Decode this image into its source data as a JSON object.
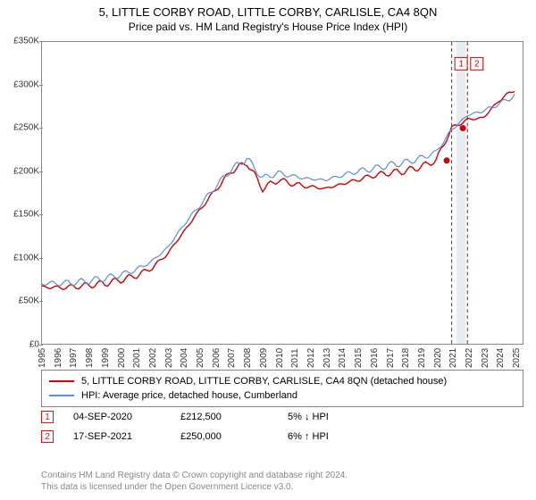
{
  "title": "5, LITTLE CORBY ROAD, LITTLE CORBY, CARLISLE, CA4 8QN",
  "subtitle": "Price paid vs. HM Land Registry's House Price Index (HPI)",
  "chart": {
    "type": "line",
    "background_color": "#ffffff",
    "border_color": "#888888",
    "x_years": [
      1995,
      1996,
      1997,
      1998,
      1999,
      2000,
      2001,
      2002,
      2003,
      2004,
      2005,
      2006,
      2007,
      2008,
      2009,
      2010,
      2011,
      2012,
      2013,
      2014,
      2015,
      2016,
      2017,
      2018,
      2019,
      2020,
      2021,
      2022,
      2023,
      2024,
      2025
    ],
    "xlim": [
      1995,
      2025.5
    ],
    "ylim": [
      0,
      350000
    ],
    "ytick_step": 50000,
    "ytick_labels": [
      "£0",
      "£50K",
      "£100K",
      "£150K",
      "£200K",
      "£250K",
      "£300K",
      "£350K"
    ],
    "ytick_values": [
      0,
      50000,
      100000,
      150000,
      200000,
      250000,
      300000,
      350000
    ],
    "tick_fontsize": 10,
    "series": [
      {
        "name": "5, LITTLE CORBY ROAD, LITTLE CORBY, CARLISLE, CA4 8QN (detached house)",
        "color": "#d40000",
        "line_width": 1.4,
        "y_by_year": [
          66000,
          65000,
          66000,
          68000,
          70000,
          74000,
          79000,
          88000,
          105000,
          130000,
          155000,
          178000,
          200000,
          210000,
          180000,
          190000,
          185000,
          182000,
          180000,
          185000,
          190000,
          195000,
          198000,
          200000,
          205000,
          212500,
          250000,
          260000,
          262000,
          282000,
          295000
        ]
      },
      {
        "name": "HPI: Average price, detached house, Cumberland",
        "color": "#5b8fd6",
        "line_width": 1.2,
        "y_by_year": [
          70000,
          70000,
          71000,
          73000,
          76000,
          80000,
          86000,
          96000,
          112000,
          138000,
          160000,
          182000,
          202000,
          215000,
          192000,
          198000,
          194000,
          191000,
          190000,
          195000,
          200000,
          203000,
          207000,
          210000,
          215000,
          222000,
          248000,
          265000,
          270000,
          278000,
          288000
        ]
      }
    ],
    "highlight_bands": [
      {
        "x_start": 2021.3,
        "x_end": 2021.9,
        "fill": "#e8edf5"
      }
    ],
    "vlines": [
      {
        "x": 2021.0,
        "color": "#d40000",
        "dash": "4 3"
      },
      {
        "x": 2022.0,
        "color": "#d40000",
        "dash": "4 3"
      }
    ],
    "markers": [
      {
        "label": "1",
        "x": 2020.68,
        "y": 212500,
        "box_xy": [
          2021.2,
          332000
        ]
      },
      {
        "label": "2",
        "x": 2021.71,
        "y": 250000,
        "box_xy": [
          2022.2,
          332000
        ]
      }
    ],
    "marker_style": {
      "radius": 3.5,
      "fill": "#d40000",
      "box_border": "#d40000",
      "box_text": "#d40000",
      "box_bg": "#ffffff",
      "box_size": 14,
      "box_fontsize": 10
    }
  },
  "legend": {
    "series1_label": "5, LITTLE CORBY ROAD, LITTLE CORBY, CARLISLE, CA4 8QN (detached house)",
    "series1_color": "#d40000",
    "series2_label": "HPI: Average price, detached house, Cumberland",
    "series2_color": "#5b8fd6",
    "fontsize": 11
  },
  "data_rows": [
    {
      "marker": "1",
      "date": "04-SEP-2020",
      "price": "£212,500",
      "delta": "5% ↓ HPI"
    },
    {
      "marker": "2",
      "date": "17-SEP-2021",
      "price": "£250,000",
      "delta": "6% ↑ HPI"
    }
  ],
  "footnote_line1": "Contains HM Land Registry data © Crown copyright and database right 2024.",
  "footnote_line2": "This data is licensed under the Open Government Licence v3.0."
}
